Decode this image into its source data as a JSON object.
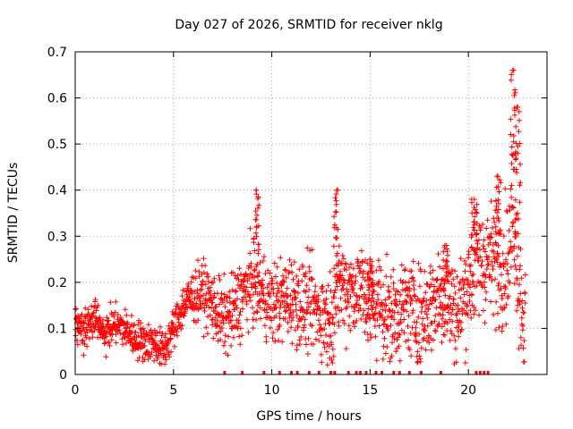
{
  "chart_data": {
    "type": "scatter",
    "title": "Day 027 of 2026, SRMTID for receiver nklg",
    "xlabel": "GPS time / hours",
    "ylabel": "SRMTID / TECUs",
    "xlim": [
      0,
      24
    ],
    "ylim": [
      0,
      0.7
    ],
    "xticks": [
      0,
      5,
      10,
      15,
      20
    ],
    "xtick_labels": [
      "0",
      "5",
      "10",
      "15",
      "20"
    ],
    "yticks": [
      0,
      0.1,
      0.2,
      0.3,
      0.4,
      0.5,
      0.6,
      0.7
    ],
    "ytick_labels": [
      "0",
      "0.1",
      "0.2",
      "0.3",
      "0.4",
      "0.5",
      "0.6",
      "0.7"
    ],
    "grid": true,
    "marker": "+",
    "color": "#ff0000",
    "series": [
      {
        "name": "SRMTID",
        "trend": [
          [
            0.0,
            0.12
          ],
          [
            0.5,
            0.1
          ],
          [
            1.0,
            0.12
          ],
          [
            1.5,
            0.09
          ],
          [
            2.0,
            0.11
          ],
          [
            2.5,
            0.1
          ],
          [
            3.0,
            0.08
          ],
          [
            3.5,
            0.07
          ],
          [
            4.0,
            0.07
          ],
          [
            4.5,
            0.05
          ],
          [
            5.0,
            0.1
          ],
          [
            5.5,
            0.15
          ],
          [
            6.0,
            0.17
          ],
          [
            6.5,
            0.18
          ],
          [
            7.0,
            0.15
          ],
          [
            7.5,
            0.12
          ],
          [
            8.0,
            0.13
          ],
          [
            8.5,
            0.17
          ],
          [
            9.0,
            0.2
          ],
          [
            9.5,
            0.18
          ],
          [
            10.0,
            0.15
          ],
          [
            10.5,
            0.16
          ],
          [
            11.0,
            0.17
          ],
          [
            11.5,
            0.15
          ],
          [
            12.0,
            0.15
          ],
          [
            12.5,
            0.13
          ],
          [
            13.0,
            0.12
          ],
          [
            13.5,
            0.2
          ],
          [
            14.0,
            0.18
          ],
          [
            14.5,
            0.19
          ],
          [
            15.0,
            0.14
          ],
          [
            15.5,
            0.16
          ],
          [
            16.0,
            0.12
          ],
          [
            16.5,
            0.14
          ],
          [
            17.0,
            0.15
          ],
          [
            17.5,
            0.12
          ],
          [
            18.0,
            0.15
          ],
          [
            18.5,
            0.17
          ],
          [
            19.0,
            0.16
          ],
          [
            19.5,
            0.13
          ],
          [
            20.0,
            0.2
          ],
          [
            20.5,
            0.24
          ],
          [
            21.0,
            0.25
          ],
          [
            21.5,
            0.24
          ],
          [
            22.0,
            0.25
          ],
          [
            22.3,
            0.35
          ],
          [
            22.6,
            0.2
          ],
          [
            22.9,
            0.1
          ]
        ],
        "noise": [
          [
            0.0,
            0.03
          ],
          [
            5.0,
            0.03
          ],
          [
            8.0,
            0.06
          ],
          [
            20.0,
            0.08
          ],
          [
            23.0,
            0.1
          ]
        ],
        "n_points": 1800,
        "peaks": [
          {
            "x": 9.2,
            "y": 0.4
          },
          {
            "x": 13.3,
            "y": 0.4
          },
          {
            "x": 15.0,
            "y": 0.25
          },
          {
            "x": 18.8,
            "y": 0.28
          },
          {
            "x": 20.3,
            "y": 0.38
          },
          {
            "x": 21.5,
            "y": 0.43
          },
          {
            "x": 22.3,
            "y": 0.66
          },
          {
            "x": 22.5,
            "y": 0.58
          }
        ]
      }
    ],
    "zero_markers": [
      7.6,
      8.5,
      9.6,
      10.4,
      11.0,
      11.3,
      11.9,
      12.4,
      13.0,
      13.2,
      13.9,
      14.3,
      14.5,
      14.8,
      15.3,
      15.6,
      16.2,
      16.5,
      17.0,
      17.6,
      18.6,
      20.4,
      20.6,
      20.8,
      21.0
    ]
  }
}
